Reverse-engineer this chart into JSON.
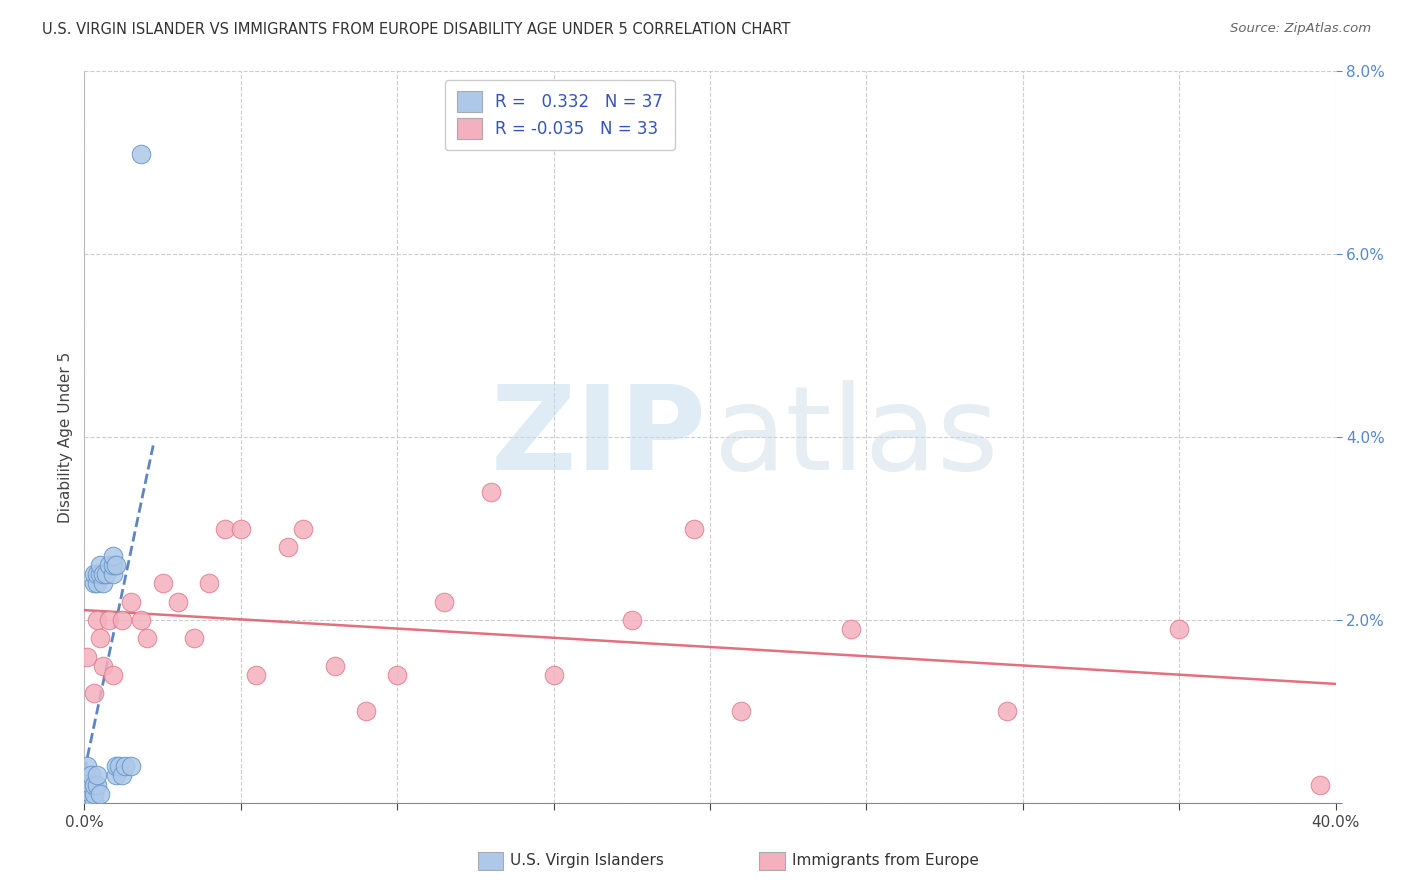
{
  "title": "U.S. VIRGIN ISLANDER VS IMMIGRANTS FROM EUROPE DISABILITY AGE UNDER 5 CORRELATION CHART",
  "source": "Source: ZipAtlas.com",
  "ylabel": "Disability Age Under 5",
  "xlim": [
    0,
    0.4
  ],
  "ylim": [
    0,
    0.08
  ],
  "xtick_positions": [
    0.0,
    0.05,
    0.1,
    0.15,
    0.2,
    0.25,
    0.3,
    0.35,
    0.4
  ],
  "xtick_labels_show": {
    "0.0": "0.0%",
    "0.40": "40.0%"
  },
  "yticks": [
    0.0,
    0.02,
    0.04,
    0.06,
    0.08
  ],
  "ytick_labels": [
    "",
    "2.0%",
    "4.0%",
    "6.0%",
    "8.0%"
  ],
  "series1_name": "U.S. Virgin Islanders",
  "series1_face_color": "#adc8e8",
  "series1_edge_color": "#6090c8",
  "series1_line_color": "#4070b8",
  "series1_R": 0.332,
  "series1_N": 37,
  "series2_name": "Immigrants from Europe",
  "series2_face_color": "#f4b0be",
  "series2_edge_color": "#e07888",
  "series2_line_color": "#e06070",
  "series2_R": -0.035,
  "series2_N": 33,
  "grid_color": "#c8c8c8",
  "bg_color": "#ffffff",
  "series1_x": [
    0.0005,
    0.001,
    0.001,
    0.001,
    0.001,
    0.001,
    0.002,
    0.002,
    0.002,
    0.002,
    0.003,
    0.003,
    0.003,
    0.003,
    0.003,
    0.004,
    0.004,
    0.004,
    0.004,
    0.005,
    0.005,
    0.005,
    0.006,
    0.006,
    0.007,
    0.008,
    0.009,
    0.009,
    0.009,
    0.01,
    0.01,
    0.01,
    0.011,
    0.012,
    0.013,
    0.015,
    0.018
  ],
  "series1_y": [
    0.0,
    0.0,
    0.001,
    0.002,
    0.003,
    0.004,
    0.0,
    0.001,
    0.002,
    0.003,
    0.0,
    0.001,
    0.002,
    0.024,
    0.025,
    0.002,
    0.003,
    0.024,
    0.025,
    0.001,
    0.025,
    0.026,
    0.024,
    0.025,
    0.025,
    0.026,
    0.025,
    0.026,
    0.027,
    0.026,
    0.003,
    0.004,
    0.004,
    0.003,
    0.004,
    0.004,
    0.071
  ],
  "series2_x": [
    0.001,
    0.003,
    0.004,
    0.005,
    0.006,
    0.008,
    0.009,
    0.012,
    0.015,
    0.018,
    0.02,
    0.025,
    0.03,
    0.035,
    0.04,
    0.045,
    0.05,
    0.055,
    0.065,
    0.07,
    0.08,
    0.09,
    0.1,
    0.115,
    0.13,
    0.15,
    0.175,
    0.195,
    0.21,
    0.245,
    0.295,
    0.35,
    0.395
  ],
  "series2_y": [
    0.016,
    0.012,
    0.02,
    0.018,
    0.015,
    0.02,
    0.014,
    0.02,
    0.022,
    0.02,
    0.018,
    0.024,
    0.022,
    0.018,
    0.024,
    0.03,
    0.03,
    0.014,
    0.028,
    0.03,
    0.015,
    0.01,
    0.014,
    0.022,
    0.034,
    0.014,
    0.02,
    0.03,
    0.01,
    0.019,
    0.01,
    0.019,
    0.002
  ],
  "legend_R1_text": "R =   0.332   N = 37",
  "legend_R2_text": "R = -0.035   N = 33",
  "legend_color": "#3355bb",
  "title_fontsize": 10.5,
  "source_fontsize": 9.5,
  "tick_fontsize": 11,
  "ylabel_fontsize": 11,
  "legend_fontsize": 12,
  "watermark_zip_color": "#c5ddf0",
  "watermark_atlas_color": "#c8d8e5"
}
